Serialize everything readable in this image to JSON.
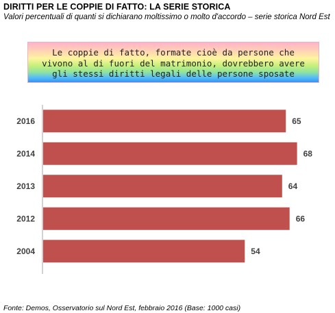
{
  "title": "DIRITTI PER LE COPPIE DI FATTO: LA SERIE STORICA",
  "subtitle": "Valori percentuali di quanti si dichiarano moltissimo o molto d'accordo – serie storica Nord Est",
  "statement": {
    "line1": "Le coppie di fatto, formate cioè da persone che",
    "line2": "vivono al di fuori del matrimonio, dovrebbero avere",
    "line3": "gli stessi diritti legali delle persone sposate"
  },
  "source": "Fonte: Demos, Osservatorio sul Nord Est, febbraio 2016 (Base: 1000 casi)",
  "colors": {
    "bar": "#c0504d",
    "axis": "#a6a6a6",
    "label": "#404040"
  },
  "chart_data": {
    "type": "bar",
    "orientation": "horizontal",
    "categories": [
      "2016",
      "2014",
      "2013",
      "2012",
      "2004"
    ],
    "values": [
      65,
      68,
      64,
      66,
      54
    ],
    "xlim": [
      0,
      70
    ],
    "grid": false,
    "data_labels": true
  }
}
